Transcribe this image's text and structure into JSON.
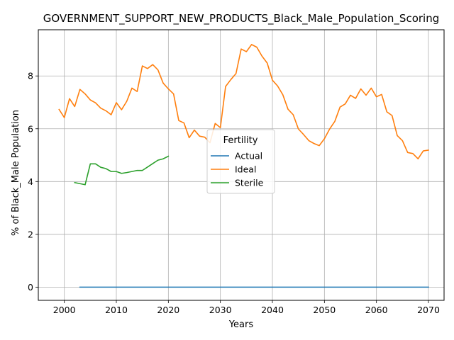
{
  "chart_data": {
    "type": "line",
    "title": "GOVERNMENT_SUPPORT_NEW_PRODUCTS_Black_Male_Population_Scoring",
    "xlabel": "Years",
    "ylabel": "% of Black_Male Population",
    "xlim": [
      1995,
      2073
    ],
    "ylim": [
      -0.5,
      9.75
    ],
    "xticks": [
      2000,
      2010,
      2020,
      2030,
      2040,
      2050,
      2060,
      2070
    ],
    "yticks": [
      0,
      2,
      4,
      6,
      8
    ],
    "grid": true,
    "legend": {
      "title": "Fertility",
      "placement": "center"
    },
    "series": [
      {
        "name": "Actual",
        "color": "#1f77b4",
        "x": [
          2003,
          2070
        ],
        "y": [
          0,
          0
        ]
      },
      {
        "name": "Ideal",
        "color": "#ff7f0e",
        "x": [
          1999,
          2000,
          2001,
          2002,
          2003,
          2004,
          2005,
          2006,
          2007,
          2008,
          2009,
          2010,
          2011,
          2012,
          2013,
          2014,
          2015,
          2016,
          2017,
          2018,
          2019,
          2020,
          2021,
          2022,
          2023,
          2024,
          2025,
          2026,
          2027,
          2028,
          2029,
          2030,
          2031,
          2032,
          2033,
          2034,
          2035,
          2036,
          2037,
          2038,
          2039,
          2040,
          2041,
          2042,
          2043,
          2044,
          2045,
          2046,
          2047,
          2048,
          2049,
          2050,
          2051,
          2052,
          2053,
          2054,
          2055,
          2056,
          2057,
          2058,
          2059,
          2060,
          2061,
          2062,
          2063,
          2064,
          2065,
          2066,
          2067,
          2068,
          2069,
          2070
        ],
        "y": [
          6.73,
          6.42,
          7.14,
          6.84,
          7.49,
          7.32,
          7.09,
          6.98,
          6.78,
          6.68,
          6.53,
          6.99,
          6.72,
          7.04,
          7.54,
          7.41,
          8.38,
          8.28,
          8.43,
          8.23,
          7.73,
          7.51,
          7.32,
          6.31,
          6.22,
          5.66,
          5.95,
          5.72,
          5.68,
          5.47,
          6.2,
          6.04,
          7.6,
          7.86,
          8.09,
          9.02,
          8.92,
          9.19,
          9.09,
          8.75,
          8.49,
          7.84,
          7.62,
          7.29,
          6.74,
          6.53,
          5.99,
          5.78,
          5.55,
          5.44,
          5.36,
          5.62,
          5.99,
          6.28,
          6.82,
          6.94,
          7.27,
          7.15,
          7.51,
          7.27,
          7.54,
          7.21,
          7.3,
          6.64,
          6.5,
          5.74,
          5.55,
          5.1,
          5.06,
          4.86,
          5.16,
          5.19
        ]
      },
      {
        "name": "Sterile",
        "color": "#2ca02c",
        "x": [
          2002,
          2003,
          2004,
          2005,
          2006,
          2007,
          2008,
          2009,
          2010,
          2011,
          2012,
          2013,
          2014,
          2015,
          2016,
          2017,
          2018,
          2019,
          2020
        ],
        "y": [
          3.96,
          3.92,
          3.88,
          4.67,
          4.67,
          4.54,
          4.49,
          4.38,
          4.38,
          4.31,
          4.34,
          4.38,
          4.42,
          4.42,
          4.55,
          4.68,
          4.81,
          4.86,
          4.96
        ]
      }
    ]
  }
}
